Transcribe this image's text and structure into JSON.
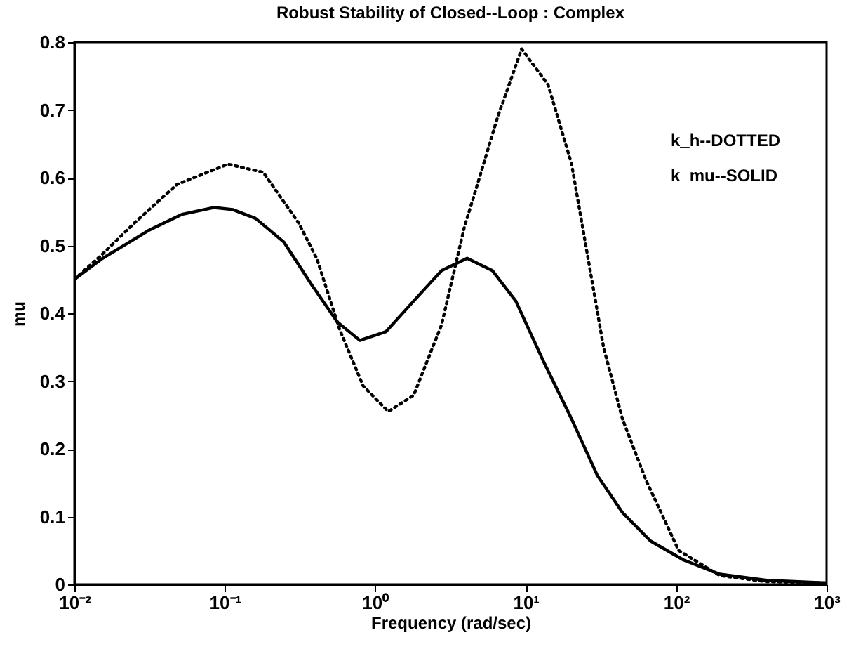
{
  "chart_data": {
    "type": "line",
    "title": "Robust Stability of Closed--Loop : Complex",
    "xlabel": "Frequency (rad/sec)",
    "ylabel": "mu",
    "annotations": [
      "k_h--DOTTED",
      "k_mu--SOLID"
    ],
    "log": "x",
    "grid": false,
    "xlim": [
      0.01,
      1000
    ],
    "xticks": [
      {
        "value": 0.01,
        "label": "10⁻²"
      },
      {
        "value": 0.1,
        "label": "10⁻¹"
      },
      {
        "value": 1,
        "label": "10⁰"
      },
      {
        "value": 10,
        "label": "10¹"
      },
      {
        "value": 100,
        "label": "10²"
      },
      {
        "value": 1000,
        "label": "10³"
      }
    ],
    "ylim": [
      0,
      0.8
    ],
    "yticks": [
      0,
      0.1,
      0.2,
      0.3,
      0.4,
      0.5,
      0.6,
      0.7,
      0.8
    ],
    "series": [
      {
        "color": "#000000",
        "line_style": "dotted",
        "x": [
          0.01,
          0.015,
          0.025,
          0.048,
          0.105,
          0.18,
          0.31,
          0.41,
          0.58,
          0.83,
          1.22,
          1.8,
          2.76,
          3.93,
          4.5,
          6.5,
          9.4,
          14.1,
          20.2,
          33,
          44,
          63,
          104,
          195,
          400,
          1000
        ],
        "values": [
          0.45,
          0.485,
          0.533,
          0.59,
          0.62,
          0.608,
          0.533,
          0.48,
          0.376,
          0.293,
          0.255,
          0.279,
          0.383,
          0.529,
          0.571,
          0.689,
          0.79,
          0.737,
          0.62,
          0.349,
          0.244,
          0.154,
          0.05,
          0.013,
          0.004,
          0.002
        ]
      },
      {
        "color": "#000000",
        "line_style": "solid",
        "x": [
          0.01,
          0.0154,
          0.031,
          0.052,
          0.085,
          0.113,
          0.16,
          0.247,
          0.378,
          0.56,
          0.79,
          1.18,
          1.8,
          2.76,
          4.08,
          6.0,
          8.6,
          13.2,
          20.2,
          29.9,
          44,
          67.6,
          112,
          195,
          400,
          1000
        ],
        "values": [
          0.45,
          0.481,
          0.522,
          0.546,
          0.556,
          0.553,
          0.54,
          0.505,
          0.442,
          0.387,
          0.36,
          0.373,
          0.418,
          0.463,
          0.481,
          0.463,
          0.418,
          0.328,
          0.244,
          0.161,
          0.106,
          0.064,
          0.036,
          0.015,
          0.006,
          0.002
        ]
      }
    ]
  }
}
